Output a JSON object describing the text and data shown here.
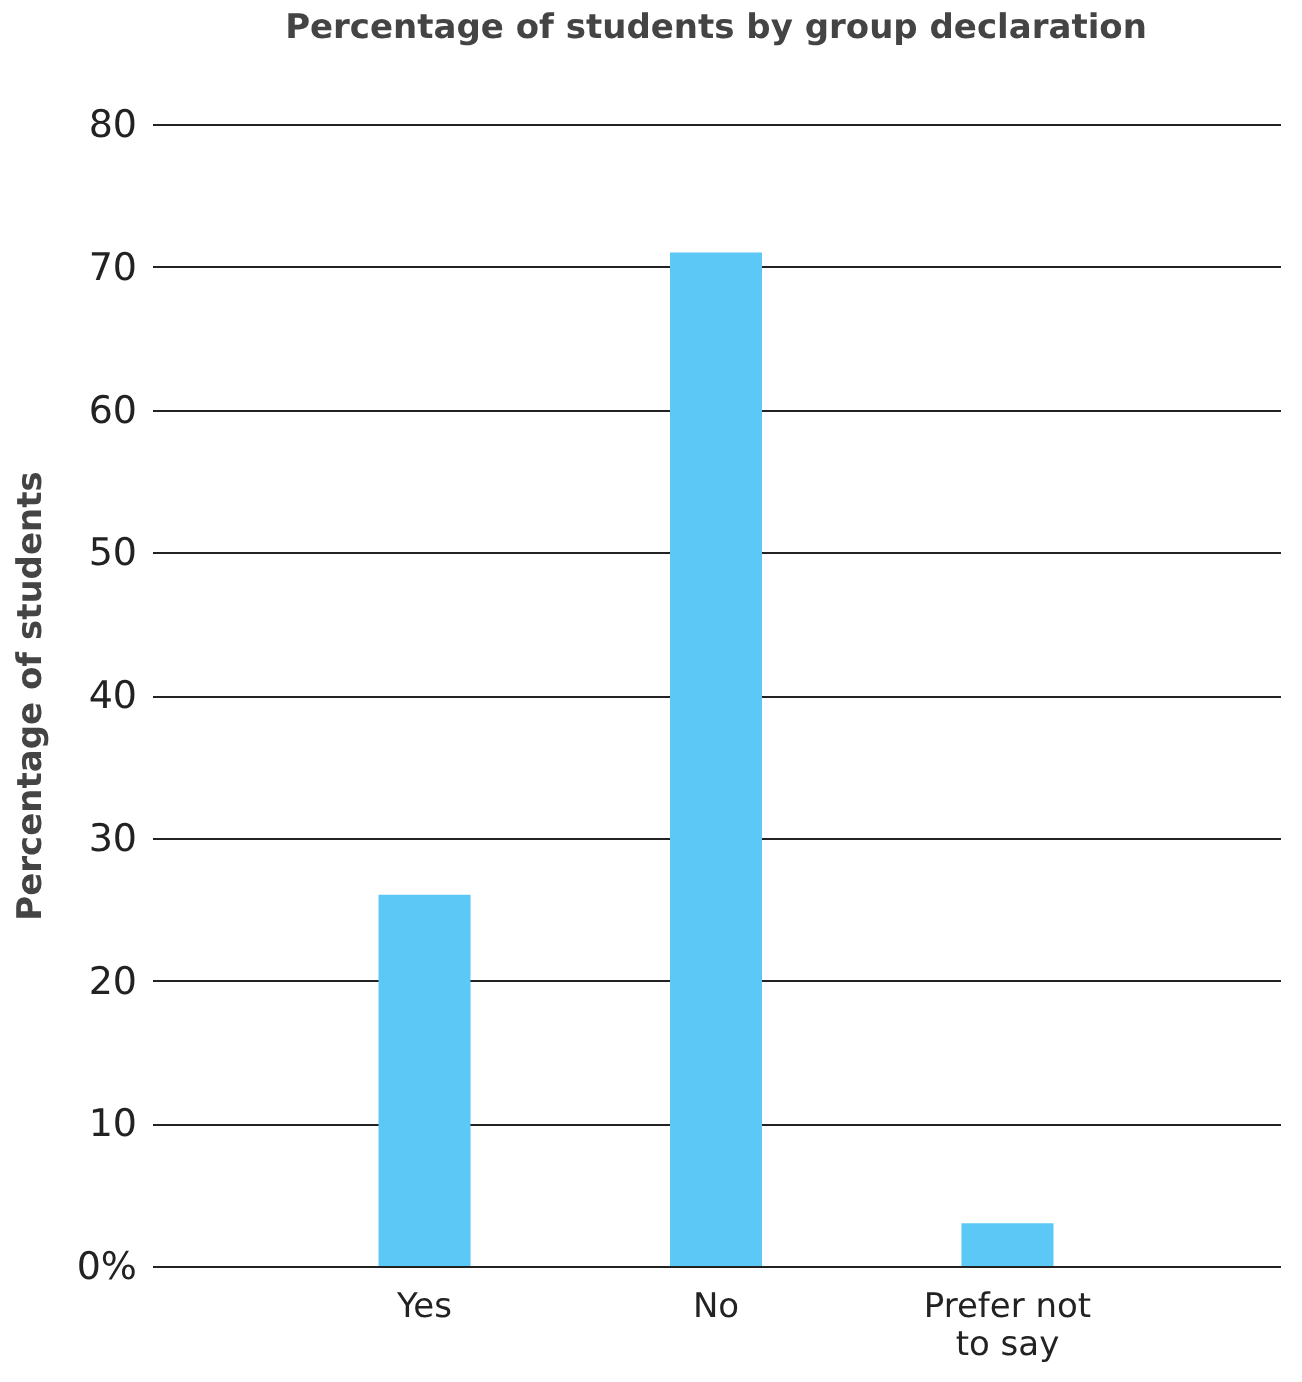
{
  "chart_data": {
    "type": "bar",
    "title": "Percentage of students by group declaration",
    "ylabel": "Percentage of students",
    "categories": [
      "Yes",
      "No",
      "Prefer not to say"
    ],
    "values": [
      26,
      71,
      3
    ],
    "color": "#5bc8f5",
    "ylim": [
      0,
      80
    ],
    "yticks": [
      {
        "value": 0,
        "label": "0%"
      },
      10,
      20,
      30,
      40,
      50,
      60,
      70,
      80
    ],
    "grid": "y"
  }
}
